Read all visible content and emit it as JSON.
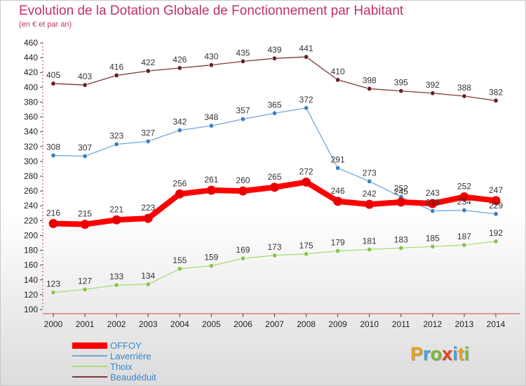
{
  "chart_data": {
    "type": "line",
    "title": "Evolution de la Dotation Globale de Fonctionnement par Habitant",
    "subtitle": "(en € et par an)",
    "xlabel": "",
    "ylabel": "",
    "ylim": [
      100,
      460
    ],
    "y_ticks": [
      100,
      120,
      140,
      160,
      180,
      200,
      220,
      240,
      260,
      280,
      300,
      320,
      340,
      360,
      380,
      400,
      420,
      440,
      460
    ],
    "x": [
      "2000",
      "2001",
      "2002",
      "2003",
      "2004",
      "2005",
      "2006",
      "2007",
      "2008",
      "2009",
      "2010",
      "2011",
      "2012",
      "2013",
      "2014"
    ],
    "grid": false,
    "legend_position": "bottom-left",
    "series": [
      {
        "name": "OFFOY",
        "color": "#ff0000",
        "point_color": "#e60000",
        "width": "thick",
        "values": [
          216,
          215,
          221,
          223,
          256,
          261,
          260,
          265,
          272,
          246,
          242,
          245,
          243,
          252,
          247
        ]
      },
      {
        "name": "Laverrière",
        "color": "#74a7d6",
        "point_color": "#3a80c0",
        "width": "thin",
        "values": [
          308,
          307,
          323,
          327,
          342,
          348,
          357,
          365,
          372,
          291,
          273,
          252,
          233,
          234,
          229
        ]
      },
      {
        "name": "Thoix",
        "color": "#a8dc78",
        "point_color": "#86c44e",
        "width": "thin",
        "values": [
          123,
          127,
          133,
          134,
          155,
          159,
          169,
          173,
          175,
          179,
          181,
          183,
          185,
          187,
          192
        ]
      },
      {
        "name": "Beaudéduit",
        "color": "#7a3a3a",
        "point_color": "#6a1f24",
        "width": "thin",
        "values": [
          405,
          403,
          416,
          422,
          426,
          430,
          435,
          439,
          441,
          410,
          398,
          395,
          392,
          388,
          382
        ]
      }
    ]
  },
  "logo": {
    "text": "Proxiti",
    "letters": [
      "P",
      "r",
      "o",
      "x",
      "i",
      "t",
      "i"
    ],
    "colors": [
      "#e8a020",
      "#4aa0d8",
      "#7abc3a",
      "#e84020",
      "#4aa0d8",
      "#e8a020",
      "#7abc3a"
    ]
  }
}
